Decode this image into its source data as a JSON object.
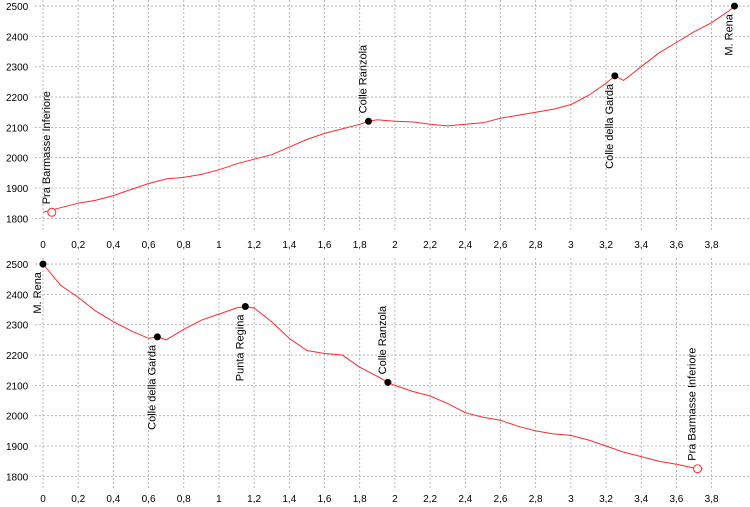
{
  "chart_data": [
    {
      "type": "line",
      "xlabel": "",
      "ylabel": "",
      "xlim": [
        0,
        3.95
      ],
      "ylim": [
        1755,
        2520
      ],
      "grid": true,
      "x_ticks": [
        "0",
        "0,2",
        "0,4",
        "0,6",
        "0,8",
        "1",
        "1,2",
        "1,4",
        "1,6",
        "1,8",
        "2",
        "2,2",
        "2,4",
        "2,6",
        "2,8",
        "3",
        "3,2",
        "3,4",
        "3,6",
        "3,8"
      ],
      "x_tick_values": [
        0,
        0.2,
        0.4,
        0.6,
        0.8,
        1,
        1.2,
        1.4,
        1.6,
        1.8,
        2,
        2.2,
        2.4,
        2.6,
        2.8,
        3,
        3.2,
        3.4,
        3.6,
        3.8
      ],
      "y_ticks": [
        "1800",
        "1900",
        "2000",
        "2100",
        "2200",
        "2300",
        "2400",
        "2500"
      ],
      "y_tick_values": [
        1800,
        1900,
        2000,
        2100,
        2200,
        2300,
        2400,
        2500
      ],
      "series": [
        {
          "color": "#ff2a2a",
          "x": [
            0,
            0.1,
            0.2,
            0.3,
            0.4,
            0.5,
            0.6,
            0.7,
            0.8,
            0.9,
            1.0,
            1.1,
            1.2,
            1.3,
            1.4,
            1.5,
            1.6,
            1.7,
            1.8,
            1.85,
            1.9,
            2.0,
            2.1,
            2.2,
            2.3,
            2.4,
            2.5,
            2.6,
            2.7,
            2.8,
            2.9,
            3.0,
            3.1,
            3.2,
            3.25,
            3.3,
            3.4,
            3.5,
            3.6,
            3.7,
            3.8,
            3.9,
            3.93
          ],
          "y": [
            1820,
            1835,
            1850,
            1860,
            1875,
            1895,
            1915,
            1930,
            1935,
            1945,
            1960,
            1980,
            1995,
            2010,
            2035,
            2060,
            2080,
            2095,
            2110,
            2120,
            2125,
            2120,
            2118,
            2110,
            2105,
            2110,
            2115,
            2130,
            2140,
            2150,
            2160,
            2175,
            2205,
            2245,
            2270,
            2255,
            2300,
            2345,
            2380,
            2415,
            2445,
            2485,
            2500
          ]
        }
      ],
      "waypoints": [
        {
          "label": "Pra Barmasse Inferiore",
          "x": 0.05,
          "y": 1820,
          "marker": "open"
        },
        {
          "label": "Colle Ranzola",
          "x": 1.85,
          "y": 2120,
          "marker": "filled"
        },
        {
          "label": "Colle della Garda",
          "x": 3.25,
          "y": 2270,
          "marker": "filled"
        },
        {
          "label": "M. Rena",
          "x": 3.93,
          "y": 2500,
          "marker": "filled"
        }
      ]
    },
    {
      "type": "line",
      "xlabel": "",
      "ylabel": "",
      "xlim": [
        0,
        3.95
      ],
      "ylim": [
        1755,
        2520
      ],
      "grid": true,
      "x_ticks": [
        "0",
        "0,2",
        "0,4",
        "0,6",
        "0,8",
        "1",
        "1,2",
        "1,4",
        "1,6",
        "1,8",
        "2",
        "2,2",
        "2,4",
        "2,6",
        "2,8",
        "3",
        "3,2",
        "3,4",
        "3,6",
        "3,8"
      ],
      "x_tick_values": [
        0,
        0.2,
        0.4,
        0.6,
        0.8,
        1,
        1.2,
        1.4,
        1.6,
        1.8,
        2,
        2.2,
        2.4,
        2.6,
        2.8,
        3,
        3.2,
        3.4,
        3.6,
        3.8
      ],
      "y_ticks": [
        "1800",
        "1900",
        "2000",
        "2100",
        "2200",
        "2300",
        "2400",
        "2500"
      ],
      "y_tick_values": [
        1800,
        1900,
        2000,
        2100,
        2200,
        2300,
        2400,
        2500
      ],
      "series": [
        {
          "color": "#ff2a2a",
          "x": [
            0,
            0.1,
            0.2,
            0.3,
            0.4,
            0.5,
            0.6,
            0.65,
            0.7,
            0.8,
            0.9,
            1.0,
            1.1,
            1.15,
            1.2,
            1.3,
            1.4,
            1.5,
            1.6,
            1.7,
            1.8,
            1.9,
            1.96,
            2.0,
            2.1,
            2.2,
            2.3,
            2.4,
            2.5,
            2.6,
            2.7,
            2.8,
            2.9,
            3.0,
            3.1,
            3.2,
            3.3,
            3.4,
            3.5,
            3.6,
            3.72,
            3.75
          ],
          "y": [
            2500,
            2430,
            2390,
            2345,
            2310,
            2280,
            2255,
            2260,
            2250,
            2285,
            2315,
            2335,
            2355,
            2360,
            2355,
            2310,
            2255,
            2215,
            2205,
            2200,
            2160,
            2130,
            2110,
            2100,
            2080,
            2065,
            2040,
            2010,
            1995,
            1985,
            1965,
            1950,
            1940,
            1935,
            1920,
            1900,
            1880,
            1865,
            1850,
            1840,
            1825,
            1825
          ]
        }
      ],
      "waypoints": [
        {
          "label": "M. Rena",
          "x": 0,
          "y": 2500,
          "marker": "filled"
        },
        {
          "label": "Colle della Garda",
          "x": 0.65,
          "y": 2260,
          "marker": "filled"
        },
        {
          "label": "Punta Regina",
          "x": 1.15,
          "y": 2360,
          "marker": "filled"
        },
        {
          "label": "Colle Ranzola",
          "x": 1.96,
          "y": 2110,
          "marker": "filled"
        },
        {
          "label": "Pra Barmasse Inferiore",
          "x": 3.72,
          "y": 1825,
          "marker": "open"
        }
      ]
    }
  ]
}
